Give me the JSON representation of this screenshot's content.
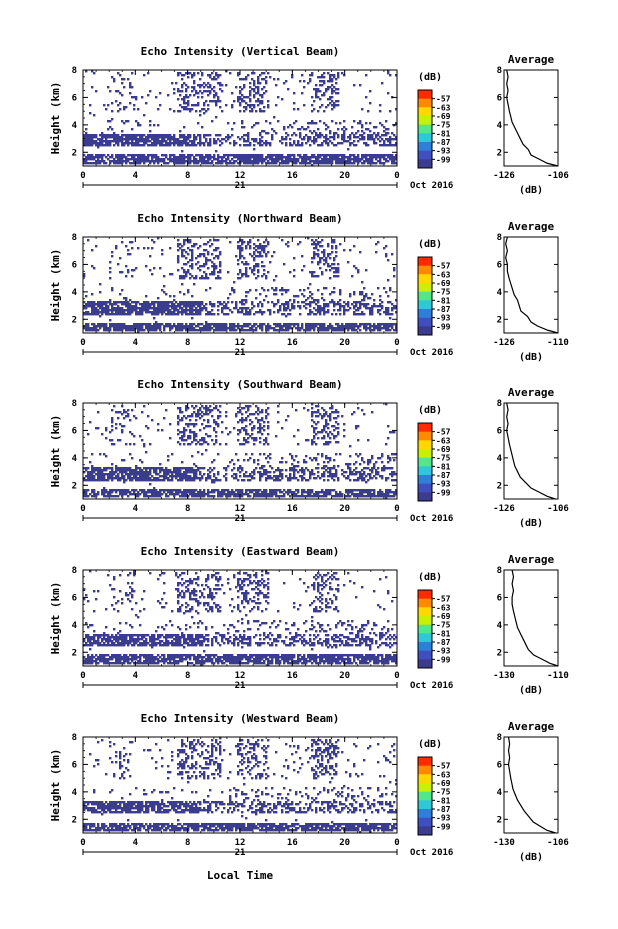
{
  "figure": {
    "x_axis_title": "Local Time",
    "date_label": "21",
    "month_year": "Oct 2016"
  },
  "colorbar": {
    "unit": "(dB)",
    "labels": [
      "-57",
      "-63",
      "-69",
      "-75",
      "-81",
      "-87",
      "-93",
      "-99"
    ],
    "colors": [
      "#ff2a00",
      "#ff8a00",
      "#ffd800",
      "#c8f000",
      "#52e88a",
      "#2ec8d8",
      "#2f7fd8",
      "#3f4fc0",
      "#3b3c8e"
    ]
  },
  "chart_data": [
    {
      "type": "heatmap",
      "title": "Echo Intensity (Vertical Beam)",
      "ylabel": "Height (km)",
      "xlim": [
        0,
        24
      ],
      "ylim": [
        1,
        8
      ],
      "x_ticks": [
        "0",
        "4",
        "8",
        "12",
        "16",
        "20",
        "0"
      ],
      "y_ticks": [
        "2",
        "4",
        "6",
        "8"
      ],
      "dominant_value_db": -99,
      "echo_layers_km": [
        [
          1.2,
          1.9
        ],
        [
          2.4,
          3.4
        ]
      ],
      "average_profile": {
        "title": "Average",
        "xlabel": "(dB)",
        "x_ticks": [
          "-126",
          "-106"
        ],
        "y_ticks": [
          "2",
          "4",
          "6",
          "8"
        ],
        "xlim": [
          -126,
          -106
        ],
        "height_km": [
          1.0,
          1.2,
          1.5,
          1.8,
          2.2,
          2.6,
          3.0,
          3.4,
          3.8,
          4.2,
          4.6,
          5.0,
          5.5,
          6.0,
          6.5,
          7.0,
          7.5,
          8.0
        ],
        "values_db": [
          -106,
          -110,
          -113,
          -116,
          -117,
          -119,
          -120,
          -121,
          -122,
          -123,
          -123.5,
          -124,
          -124.5,
          -125,
          -124.5,
          -125,
          -124.5,
          -125
        ]
      }
    },
    {
      "type": "heatmap",
      "title": "Echo Intensity (Northward Beam)",
      "ylabel": "Height (km)",
      "xlim": [
        0,
        24
      ],
      "ylim": [
        1,
        8
      ],
      "x_ticks": [
        "0",
        "4",
        "8",
        "12",
        "16",
        "20",
        "0"
      ],
      "y_ticks": [
        "2",
        "4",
        "6",
        "8"
      ],
      "dominant_value_db": -99,
      "echo_layers_km": [
        [
          1.2,
          1.8
        ],
        [
          2.3,
          3.3
        ]
      ],
      "average_profile": {
        "title": "Average",
        "xlabel": "(dB)",
        "x_ticks": [
          "-126",
          "-110"
        ],
        "y_ticks": [
          "2",
          "4",
          "6",
          "8"
        ],
        "xlim": [
          -126,
          -110
        ],
        "height_km": [
          1.0,
          1.2,
          1.5,
          1.8,
          2.2,
          2.6,
          3.0,
          3.4,
          3.8,
          4.2,
          4.6,
          5.0,
          5.5,
          6.0,
          6.5,
          7.0,
          7.5,
          8.0
        ],
        "values_db": [
          -110,
          -113,
          -116,
          -118,
          -119,
          -121,
          -121.5,
          -122,
          -123,
          -123.5,
          -124,
          -124.5,
          -125,
          -125,
          -125.5,
          -125,
          -125.5,
          -125
        ]
      }
    },
    {
      "type": "heatmap",
      "title": "Echo Intensity (Southward Beam)",
      "ylabel": "Height (km)",
      "xlim": [
        0,
        24
      ],
      "ylim": [
        1,
        8
      ],
      "x_ticks": [
        "0",
        "4",
        "8",
        "12",
        "16",
        "20",
        "0"
      ],
      "y_ticks": [
        "2",
        "4",
        "6",
        "8"
      ],
      "dominant_value_db": -99,
      "echo_layers_km": [
        [
          1.1,
          1.7
        ],
        [
          2.3,
          3.3
        ]
      ],
      "average_profile": {
        "title": "Average",
        "xlabel": "(dB)",
        "x_ticks": [
          "-126",
          "-106"
        ],
        "y_ticks": [
          "2",
          "4",
          "6",
          "8"
        ],
        "xlim": [
          -126,
          -106
        ],
        "height_km": [
          1.0,
          1.2,
          1.5,
          1.8,
          2.2,
          2.6,
          3.0,
          3.4,
          3.8,
          4.2,
          4.6,
          5.0,
          5.5,
          6.0,
          6.5,
          7.0,
          7.5,
          8.0
        ],
        "values_db": [
          -107,
          -110,
          -113,
          -116,
          -118,
          -120,
          -121,
          -122,
          -122.5,
          -123,
          -123.5,
          -124,
          -124.5,
          -125,
          -124.5,
          -125,
          -124.5,
          -125
        ]
      }
    },
    {
      "type": "heatmap",
      "title": "Echo Intensity (Eastward Beam)",
      "ylabel": "Height (km)",
      "xlim": [
        0,
        24
      ],
      "ylim": [
        1,
        8
      ],
      "x_ticks": [
        "0",
        "4",
        "8",
        "12",
        "16",
        "20",
        "0"
      ],
      "y_ticks": [
        "2",
        "4",
        "6",
        "8"
      ],
      "dominant_value_db": -99,
      "echo_layers_km": [
        [
          1.2,
          1.9
        ],
        [
          2.4,
          3.4
        ]
      ],
      "average_profile": {
        "title": "Average",
        "xlabel": "(dB)",
        "x_ticks": [
          "-130",
          "-110"
        ],
        "y_ticks": [
          "2",
          "4",
          "6",
          "8"
        ],
        "xlim": [
          -130,
          -110
        ],
        "height_km": [
          1.0,
          1.2,
          1.5,
          1.8,
          2.2,
          2.6,
          3.0,
          3.4,
          3.8,
          4.2,
          4.6,
          5.0,
          5.5,
          6.0,
          6.5,
          7.0,
          7.5,
          8.0
        ],
        "values_db": [
          -110,
          -113,
          -116,
          -119,
          -121,
          -122,
          -123,
          -124,
          -125,
          -125.5,
          -126,
          -126.5,
          -127,
          -127,
          -126.5,
          -127,
          -126.5,
          -127
        ]
      }
    },
    {
      "type": "heatmap",
      "title": "Echo Intensity (Westward Beam)",
      "ylabel": "Height (km)",
      "xlim": [
        0,
        24
      ],
      "ylim": [
        1,
        8
      ],
      "x_ticks": [
        "0",
        "4",
        "8",
        "12",
        "16",
        "20",
        "0"
      ],
      "y_ticks": [
        "2",
        "4",
        "6",
        "8"
      ],
      "dominant_value_db": -99,
      "echo_layers_km": [
        [
          1.1,
          1.8
        ],
        [
          2.4,
          3.3
        ]
      ],
      "average_profile": {
        "title": "Average",
        "xlabel": "(dB)",
        "x_ticks": [
          "-130",
          "-106"
        ],
        "y_ticks": [
          "2",
          "4",
          "6",
          "8"
        ],
        "xlim": [
          -130,
          -106
        ],
        "height_km": [
          1.0,
          1.2,
          1.5,
          1.8,
          2.2,
          2.6,
          3.0,
          3.4,
          3.8,
          4.2,
          4.6,
          5.0,
          5.5,
          6.0,
          6.5,
          7.0,
          7.5,
          8.0
        ],
        "values_db": [
          -107,
          -111,
          -114,
          -117,
          -119,
          -121,
          -122.5,
          -124,
          -125,
          -126,
          -126.5,
          -127,
          -127.5,
          -128,
          -127.5,
          -128,
          -127.5,
          -128
        ]
      }
    }
  ]
}
